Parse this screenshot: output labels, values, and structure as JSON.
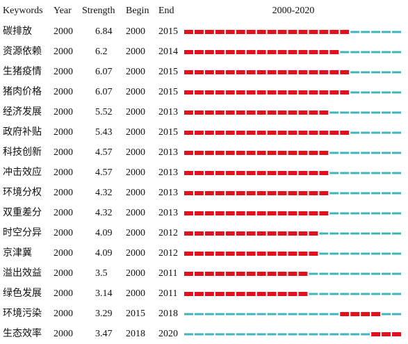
{
  "header": {
    "columns": [
      "Keywords",
      "Year",
      "Strength",
      "Begin",
      "End"
    ]
  },
  "timeline": {
    "label": "2000-2020",
    "start": 2000,
    "end": 2020
  },
  "rows": [
    [
      "碳排放",
      2000,
      6.84,
      2000,
      2015
    ],
    [
      "资源依赖",
      2000,
      6.2,
      2000,
      2014
    ],
    [
      "生猪疫情",
      2000,
      6.07,
      2000,
      2015
    ],
    [
      "猪肉价格",
      2000,
      6.07,
      2000,
      2015
    ],
    [
      "经济发展",
      2000,
      5.52,
      2000,
      2013
    ],
    [
      "政府补贴",
      2000,
      5.43,
      2000,
      2015
    ],
    [
      "科技创新",
      2000,
      4.57,
      2000,
      2013
    ],
    [
      "冲击效应",
      2000,
      4.57,
      2000,
      2013
    ],
    [
      "环境分权",
      2000,
      4.32,
      2000,
      2013
    ],
    [
      "双重差分",
      2000,
      4.32,
      2000,
      2013
    ],
    [
      "时空分异",
      2000,
      4.09,
      2000,
      2012
    ],
    [
      "京津冀",
      2000,
      4.09,
      2000,
      2012
    ],
    [
      "溢出效益",
      2000,
      3.5,
      2000,
      2011
    ],
    [
      "绿色发展",
      2000,
      3.14,
      2000,
      2011
    ],
    [
      "环境污染",
      2000,
      3.29,
      2015,
      2018
    ],
    [
      "生态效率",
      2000,
      3.47,
      2018,
      2020
    ]
  ]
}
